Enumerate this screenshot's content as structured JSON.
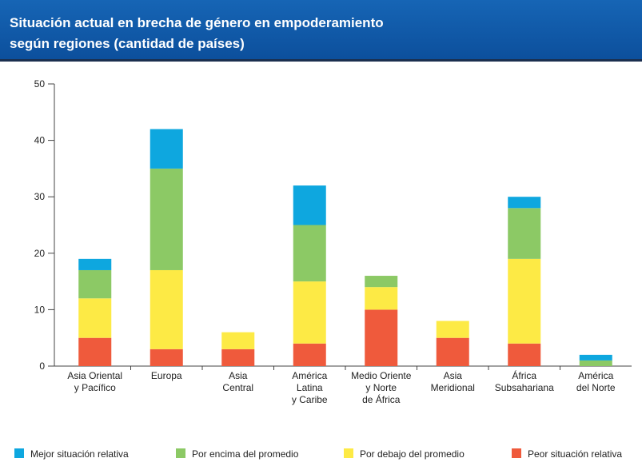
{
  "chart_data": {
    "type": "stacked_bar",
    "title": [
      "Situación actual en brecha de género en empoderamiento",
      "según regiones (cantidad de países)"
    ],
    "categories": [
      [
        "Asia Oriental",
        "y Pacífico"
      ],
      [
        "Europa"
      ],
      [
        "Asia",
        "Central"
      ],
      [
        "América",
        "Latina",
        "y Caribe"
      ],
      [
        "Medio Oriente",
        "y Norte",
        "de África"
      ],
      [
        "Asia",
        "Meridional"
      ],
      [
        "África",
        "Subsahariana"
      ],
      [
        "América",
        "del Norte"
      ]
    ],
    "series": [
      {
        "name": "Peor situación relativa",
        "color": "#ef5a3c",
        "values": [
          5,
          3,
          3,
          4,
          10,
          5,
          4,
          0
        ]
      },
      {
        "name": "Por debajo del promedio",
        "color": "#fdea45",
        "values": [
          7,
          14,
          3,
          11,
          4,
          3,
          15,
          0
        ]
      },
      {
        "name": "Por encima del promedio",
        "color": "#8cc965",
        "values": [
          5,
          18,
          0,
          10,
          2,
          0,
          9,
          1
        ]
      },
      {
        "name": "Mejor situación relativa",
        "color": "#0ea7df",
        "values": [
          2,
          7,
          0,
          7,
          0,
          0,
          2,
          1
        ]
      }
    ],
    "ylim": [
      0,
      50
    ],
    "yticks": [
      0,
      10,
      20,
      30,
      40,
      50
    ],
    "grid": false
  }
}
